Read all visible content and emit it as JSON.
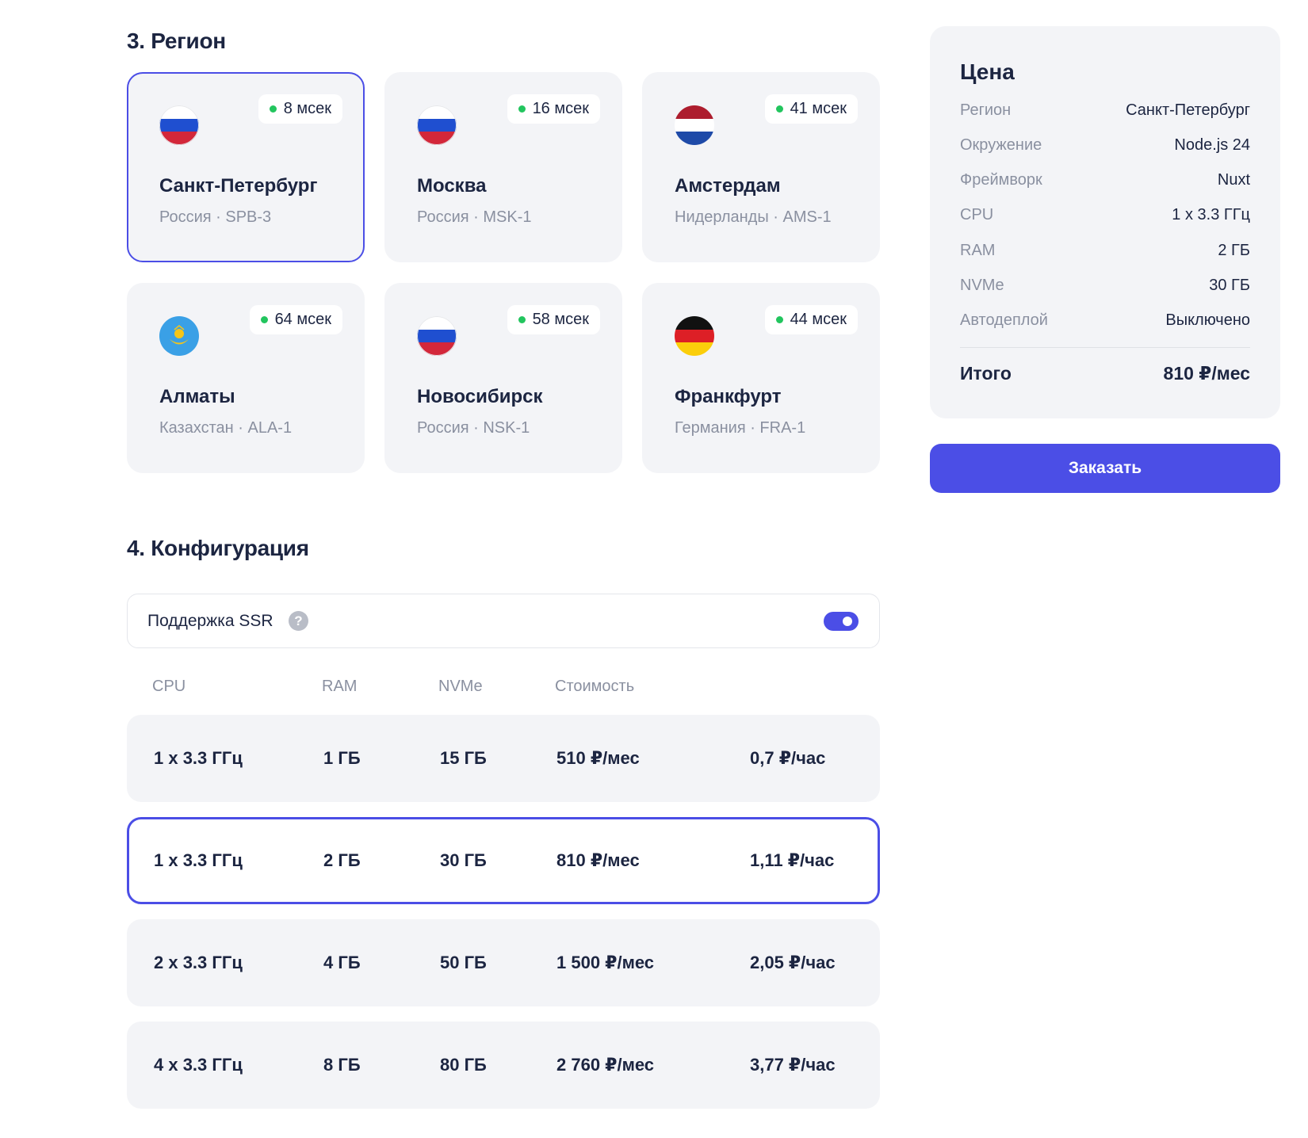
{
  "region_section": {
    "title": "3. Регион"
  },
  "regions": [
    {
      "city": "Санкт-Петербург",
      "meta": "Россия · SPB-3",
      "ping": "8 мсек",
      "flag": "russia",
      "selected": true
    },
    {
      "city": "Москва",
      "meta": "Россия · MSK-1",
      "ping": "16 мсек",
      "flag": "russia",
      "selected": false
    },
    {
      "city": "Амстердам",
      "meta": "Нидерланды · AMS-1",
      "ping": "41 мсек",
      "flag": "netherlands",
      "selected": false
    },
    {
      "city": "Алматы",
      "meta": "Казахстан · ALA-1",
      "ping": "64 мсек",
      "flag": "kazakhstan",
      "selected": false
    },
    {
      "city": "Новосибирск",
      "meta": "Россия · NSK-1",
      "ping": "58 мсек",
      "flag": "russia",
      "selected": false
    },
    {
      "city": "Франкфурт",
      "meta": "Германия · FRA-1",
      "ping": "44 мсек",
      "flag": "germany",
      "selected": false
    }
  ],
  "config_section": {
    "title": "4. Конфигурация",
    "ssr_label": "Поддержка SSR",
    "ssr_help_icon": "?",
    "ssr_enabled": true
  },
  "config_table": {
    "headers": {
      "cpu": "CPU",
      "ram": "RAM",
      "nvme": "NVMe",
      "cost": "Стоимость"
    },
    "rows": [
      {
        "cpu": "1 x 3.3 ГГц",
        "ram": "1 ГБ",
        "nvme": "15 ГБ",
        "month": "510 ₽/мес",
        "hour": "0,7 ₽/час",
        "selected": false
      },
      {
        "cpu": "1 x 3.3 ГГц",
        "ram": "2 ГБ",
        "nvme": "30 ГБ",
        "month": "810 ₽/мес",
        "hour": "1,11 ₽/час",
        "selected": true
      },
      {
        "cpu": "2 x 3.3 ГГц",
        "ram": "4 ГБ",
        "nvme": "50 ГБ",
        "month": "1 500 ₽/мес",
        "hour": "2,05 ₽/час",
        "selected": false
      },
      {
        "cpu": "4 x 3.3 ГГц",
        "ram": "8 ГБ",
        "nvme": "80 ГБ",
        "month": "2 760 ₽/мес",
        "hour": "3,77 ₽/час",
        "selected": false
      }
    ]
  },
  "price": {
    "title": "Цена",
    "lines": [
      {
        "key": "Регион",
        "value": "Санкт-Петербург"
      },
      {
        "key": "Окружение",
        "value": "Node.js 24"
      },
      {
        "key": "Фреймворк",
        "value": "Nuxt"
      },
      {
        "key": "CPU",
        "value": "1 x 3.3 ГГц"
      },
      {
        "key": "RAM",
        "value": "2 ГБ"
      },
      {
        "key": "NVMe",
        "value": "30 ГБ"
      },
      {
        "key": "Автодеплой",
        "value": "Выключено"
      }
    ],
    "total_label": "Итого",
    "total_value": "810 ₽/мес"
  },
  "order_button": {
    "label": "Заказать"
  },
  "colors": {
    "accent": "#4b4ee6",
    "card_bg": "#f3f4f7",
    "ping_dot": "#22c55e",
    "text": "#1c2541",
    "muted": "#8a90a0"
  }
}
